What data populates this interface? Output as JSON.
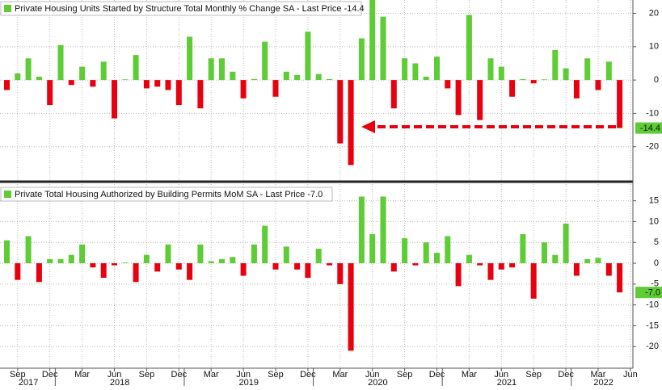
{
  "chart_data": [
    {
      "type": "bar",
      "title": "Private Housing Units Started by Structure Total Monthly % Change SA - Last Price -14.4",
      "values": [
        -3,
        2,
        6.5,
        1,
        -7.5,
        10.5,
        -1.5,
        4,
        -2,
        5.5,
        -11.5,
        0,
        7.5,
        -2.5,
        -2,
        -3,
        -7.5,
        13,
        -8.5,
        6.5,
        6.5,
        2.5,
        -5.5,
        0.3,
        11.5,
        -5,
        2.5,
        1.5,
        14.5,
        1.8,
        0.3,
        -19,
        -25.5,
        12.5,
        24,
        19,
        -8.5,
        6.5,
        5,
        1,
        7,
        -2.5,
        -10.5,
        19.5,
        -12,
        6.5,
        4,
        -5,
        0.3,
        -1,
        0,
        9,
        3.5,
        -5.5,
        6.5,
        -3,
        5.5,
        -14.4,
        null
      ],
      "ylim": [
        -30,
        24
      ],
      "yticks": [
        20,
        10,
        0,
        -10,
        -20
      ],
      "positive_color": "#5dcc35",
      "negative_color": "#e8000f",
      "grid": true
    },
    {
      "type": "bar",
      "title": "Private Total Housing Authorized by Building Permits MoM SA - Last Price -7.0",
      "categories": [
        null,
        "Sep",
        null,
        null,
        "Dec",
        null,
        null,
        "Mar",
        null,
        null,
        "Jun",
        null,
        null,
        "Sep",
        null,
        null,
        "Dec",
        null,
        null,
        "Mar",
        null,
        null,
        "Jun",
        null,
        null,
        "Sep",
        null,
        null,
        "Dec",
        null,
        null,
        "Mar",
        null,
        null,
        "Jun",
        null,
        null,
        "Sep",
        null,
        null,
        "Dec",
        null,
        null,
        "Mar",
        null,
        null,
        "Jun",
        null,
        null,
        "Sep",
        null,
        null,
        "Dec",
        null,
        null,
        "Mar",
        null,
        null,
        "Jun"
      ],
      "years": [
        "2017",
        "2018",
        "2019",
        "2020",
        "2021",
        "2022"
      ],
      "values": [
        5.5,
        -4,
        6.5,
        -4.5,
        1,
        1,
        2,
        4.5,
        -1,
        -3.5,
        -0.5,
        0,
        -4.5,
        2,
        -2,
        4.5,
        -1.5,
        -4,
        4.5,
        0.5,
        1,
        1.5,
        -3,
        4.5,
        9,
        -1.5,
        4,
        -1.5,
        -3.5,
        3.5,
        -0.5,
        -5,
        -21,
        16,
        7,
        16,
        -2,
        6,
        -0.5,
        5,
        2.5,
        6.5,
        -5.5,
        2,
        -0.5,
        -4,
        -1.5,
        -1,
        7,
        -8.5,
        5,
        2,
        9.5,
        -3,
        1,
        1.3,
        -3,
        -7,
        null
      ],
      "value_labels": [
        null,
        null,
        null,
        null,
        null,
        null,
        null,
        null,
        null,
        null,
        null,
        null,
        null,
        null,
        null,
        null,
        null,
        null,
        null,
        null,
        null,
        null,
        null,
        null,
        null,
        null,
        null,
        null,
        null,
        null,
        null,
        null,
        null,
        null,
        null,
        null,
        null,
        null,
        null,
        null,
        null,
        null,
        null,
        null,
        null,
        null,
        null,
        null,
        null,
        null,
        null,
        null,
        null,
        null,
        null,
        null,
        null,
        "-7.0",
        null
      ],
      "ylim": [
        -25,
        19
      ],
      "yticks": [
        15,
        10,
        5,
        0,
        -5,
        -10,
        -15,
        -20
      ],
      "positive_color": "#5dcc35",
      "negative_color": "#e8000f",
      "grid": true
    }
  ]
}
